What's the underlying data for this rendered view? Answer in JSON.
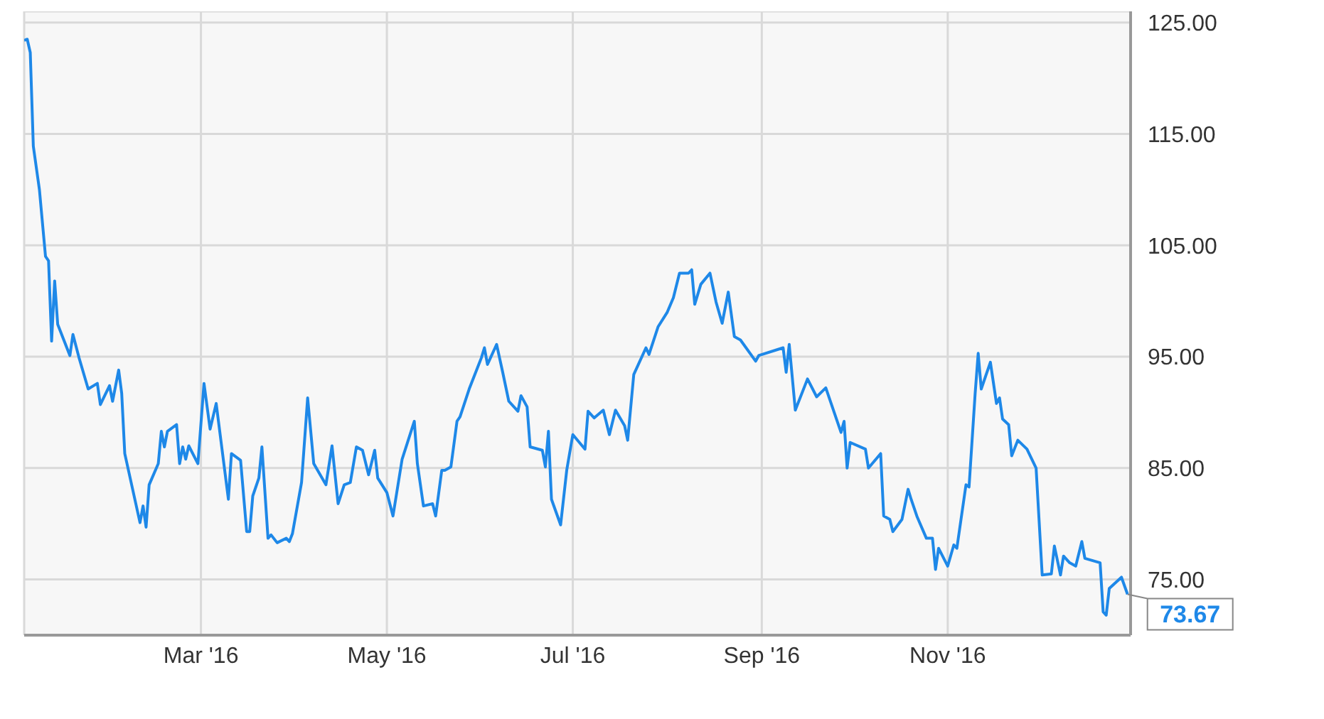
{
  "chart_data": {
    "type": "line",
    "x": [
      "2016-01-03",
      "2016-01-04",
      "2016-01-05",
      "2016-01-06",
      "2016-01-08",
      "2016-01-10",
      "2016-01-11",
      "2016-01-12",
      "2016-01-13",
      "2016-01-14",
      "2016-01-18",
      "2016-01-19",
      "2016-01-21",
      "2016-01-24",
      "2016-01-27",
      "2016-01-28",
      "2016-01-31",
      "2016-02-01",
      "2016-02-03",
      "2016-02-04",
      "2016-02-05",
      "2016-02-10",
      "2016-02-11",
      "2016-02-12",
      "2016-02-13",
      "2016-02-16",
      "2016-02-17",
      "2016-02-18",
      "2016-02-19",
      "2016-02-22",
      "2016-02-23",
      "2016-02-24",
      "2016-02-25",
      "2016-02-26",
      "2016-02-29",
      "2016-03-02",
      "2016-03-04",
      "2016-03-06",
      "2016-03-10",
      "2016-03-11",
      "2016-03-14",
      "2016-03-16",
      "2016-03-17",
      "2016-03-18",
      "2016-03-20",
      "2016-03-21",
      "2016-03-23",
      "2016-03-24",
      "2016-03-26",
      "2016-03-29",
      "2016-03-30",
      "2016-03-31",
      "2016-04-03",
      "2016-04-05",
      "2016-04-07",
      "2016-04-11",
      "2016-04-13",
      "2016-04-15",
      "2016-04-17",
      "2016-04-19",
      "2016-04-21",
      "2016-04-23",
      "2016-04-25",
      "2016-04-27",
      "2016-04-28",
      "2016-05-01",
      "2016-05-03",
      "2016-05-06",
      "2016-05-10",
      "2016-05-11",
      "2016-05-13",
      "2016-05-16",
      "2016-05-17",
      "2016-05-19",
      "2016-05-20",
      "2016-05-22",
      "2016-05-24",
      "2016-05-25",
      "2016-05-28",
      "2016-06-01",
      "2016-06-02",
      "2016-06-03",
      "2016-06-06",
      "2016-06-08",
      "2016-06-10",
      "2016-06-13",
      "2016-06-14",
      "2016-06-16",
      "2016-06-17",
      "2016-06-21",
      "2016-06-22",
      "2016-06-23",
      "2016-06-24",
      "2016-06-27",
      "2016-06-29",
      "2016-07-01",
      "2016-07-05",
      "2016-07-06",
      "2016-07-08",
      "2016-07-11",
      "2016-07-13",
      "2016-07-15",
      "2016-07-18",
      "2016-07-19",
      "2016-07-21",
      "2016-07-25",
      "2016-07-26",
      "2016-07-29",
      "2016-08-01",
      "2016-08-03",
      "2016-08-05",
      "2016-08-08",
      "2016-08-09",
      "2016-08-10",
      "2016-08-12",
      "2016-08-15",
      "2016-08-17",
      "2016-08-19",
      "2016-08-21",
      "2016-08-23",
      "2016-08-25",
      "2016-08-30",
      "2016-08-31",
      "2016-09-08",
      "2016-09-09",
      "2016-09-10",
      "2016-09-12",
      "2016-09-16",
      "2016-09-19",
      "2016-09-22",
      "2016-09-27",
      "2016-09-28",
      "2016-09-29",
      "2016-09-30",
      "2016-10-05",
      "2016-10-06",
      "2016-10-10",
      "2016-10-11",
      "2016-10-13",
      "2016-10-14",
      "2016-10-17",
      "2016-10-19",
      "2016-10-20",
      "2016-10-22",
      "2016-10-25",
      "2016-10-27",
      "2016-10-28",
      "2016-10-29",
      "2016-11-01",
      "2016-11-03",
      "2016-11-04",
      "2016-11-07",
      "2016-11-08",
      "2016-11-10",
      "2016-11-11",
      "2016-11-12",
      "2016-11-15",
      "2016-11-17",
      "2016-11-18",
      "2016-11-19",
      "2016-11-21",
      "2016-11-22",
      "2016-11-24",
      "2016-11-27",
      "2016-11-30",
      "2016-12-02",
      "2016-12-05",
      "2016-12-06",
      "2016-12-08",
      "2016-12-09",
      "2016-12-11",
      "2016-12-13",
      "2016-12-15",
      "2016-12-16",
      "2016-12-21",
      "2016-12-22",
      "2016-12-23",
      "2016-12-24",
      "2016-12-28",
      "2016-12-30"
    ],
    "series": [
      {
        "color": "#1e88e8",
        "values": [
          123.4,
          123.5,
          122.3,
          113.9,
          110,
          104,
          103.6,
          96.4,
          101.8,
          97.9,
          95.1,
          97,
          94.9,
          92.1,
          92.6,
          90.7,
          92.4,
          91,
          93.8,
          91.7,
          86.3,
          80.1,
          81.6,
          79.7,
          83.5,
          85.4,
          88.3,
          86.9,
          88.3,
          88.9,
          85.4,
          86.9,
          85.8,
          87,
          85.4,
          92.6,
          88.5,
          90.8,
          82.2,
          86.3,
          85.7,
          79.3,
          79.3,
          82.5,
          84.1,
          86.9,
          78.7,
          79,
          78.3,
          78.7,
          78.4,
          79.1,
          83.7,
          91.3,
          85.4,
          83.5,
          87,
          81.8,
          83.5,
          83.7,
          86.9,
          86.6,
          84.4,
          86.6,
          84.1,
          82.8,
          80.7,
          85.8,
          89.2,
          85.4,
          81.6,
          81.8,
          80.7,
          84.8,
          84.8,
          85.1,
          89.2,
          89.6,
          92.1,
          94.9,
          95.8,
          94.3,
          96.1,
          93.6,
          91,
          90.1,
          91.5,
          90.5,
          86.9,
          86.6,
          85.1,
          88.3,
          82.2,
          79.9,
          84.8,
          88,
          86.7,
          90.1,
          89.5,
          90.2,
          88,
          90.2,
          88.8,
          87.5,
          93.4,
          95.8,
          95.2,
          97.7,
          99,
          100.3,
          102.5,
          102.5,
          102.8,
          99.7,
          101.5,
          102.5,
          99.9,
          98,
          100.8,
          96.8,
          96.5,
          94.6,
          95.1,
          95.8,
          93.6,
          96.1,
          90.2,
          93,
          91.4,
          92.2,
          88.2,
          89.2,
          85,
          87.3,
          86.7,
          85,
          86.3,
          80.7,
          80.4,
          79.3,
          80.4,
          83.1,
          82.2,
          80.6,
          78.7,
          78.7,
          75.9,
          77.8,
          76.2,
          78.1,
          77.8,
          83.5,
          83.3,
          91.7,
          95.3,
          92.1,
          94.5,
          90.8,
          91.3,
          89.4,
          88.9,
          86.1,
          87.5,
          86.7,
          85,
          75.4,
          75.5,
          78,
          75.4,
          77.1,
          76.5,
          76.2,
          78.4,
          76.9,
          76.5,
          72.1,
          71.8,
          74.2,
          75.2,
          73.67
        ]
      }
    ],
    "xlim": [
      "2016-01-03",
      "2016-12-31"
    ],
    "xticks": [
      {
        "value": "2016-03-01",
        "label": "Mar '16"
      },
      {
        "value": "2016-05-01",
        "label": "May '16"
      },
      {
        "value": "2016-07-01",
        "label": "Jul '16"
      },
      {
        "value": "2016-09-01",
        "label": "Sep '16"
      },
      {
        "value": "2016-11-01",
        "label": "Nov '16"
      }
    ],
    "ylim": [
      70,
      126
    ],
    "yticks": [
      {
        "value": 75,
        "label": "75.00"
      },
      {
        "value": 85,
        "label": "85.00"
      },
      {
        "value": 95,
        "label": "95.00"
      },
      {
        "value": 105,
        "label": "105.00"
      },
      {
        "value": 115,
        "label": "115.00"
      },
      {
        "value": 125,
        "label": "125.00"
      }
    ],
    "grid": true,
    "marker": "none",
    "line_style": "solid",
    "annotations": [
      {
        "text": "73.67",
        "x": "2016-12-30",
        "y": 73.67
      }
    ]
  }
}
